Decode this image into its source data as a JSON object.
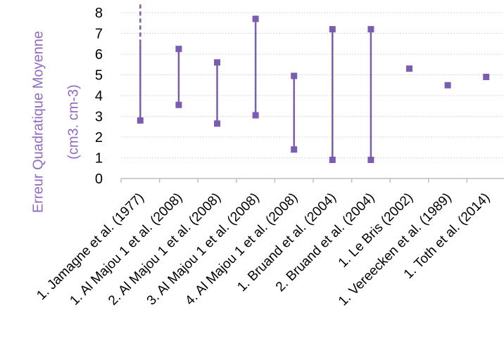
{
  "chart_data": {
    "type": "scatter",
    "ylabel_line1": "Erreur Quadratique Moyenne",
    "ylabel_line2": "(cm3. cm-3)",
    "ylim": [
      0,
      8
    ],
    "yticks": [
      "0",
      "1",
      "2",
      "3",
      "4",
      "5",
      "6",
      "7",
      "8"
    ],
    "grid": true,
    "categories": [
      "1. Jamagne et al. (1977)",
      "1. Al Majou 1 et al. (2008)",
      "2. Al Majou 1 et al. (2008)",
      "3. Al Majou 1 et al. (2008)",
      "4. Al Majou 1 et al. (2008)",
      "1. Bruand et al. (2004)",
      "2. Bruand et al. (2004)",
      "1. Le Bris (2002)",
      "1. Vereecken et al. (1989)",
      "1. Toth et al. (2014)"
    ],
    "ranges": [
      {
        "min": 2.8,
        "max": 8.5,
        "solid_to": 6.5
      },
      {
        "min": 3.55,
        "max": 6.25
      },
      {
        "min": 2.65,
        "max": 5.6
      },
      {
        "min": 3.05,
        "max": 7.7
      },
      {
        "min": 1.4,
        "max": 4.95
      },
      {
        "min": 0.9,
        "max": 7.2
      },
      {
        "min": 0.9,
        "max": 7.2
      },
      {
        "value": 5.3
      },
      {
        "value": 4.5
      },
      {
        "value": 4.9
      }
    ],
    "color": "#7b5cb5"
  }
}
